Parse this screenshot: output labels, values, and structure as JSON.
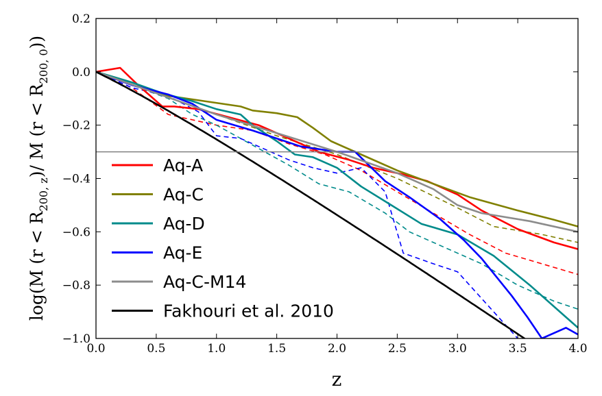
{
  "chart_data": {
    "type": "line",
    "xlabel": "z",
    "ylabel": {
      "prefix": "log(M (r < R",
      "sub1": "200, z",
      "middle": ")/ M (r < R",
      "sub2": "200, 0",
      "suffix": "))"
    },
    "xlim": [
      0.0,
      4.0
    ],
    "ylim": [
      -1.0,
      0.2
    ],
    "xticks": [
      "0.0",
      "0.5",
      "1.0",
      "1.5",
      "2.0",
      "2.5",
      "3.0",
      "3.5",
      "4.0"
    ],
    "yticks": [
      "0.2",
      "0.0",
      "−0.2",
      "−0.4",
      "−0.6",
      "−0.8",
      "−1.0"
    ],
    "grid": false,
    "legend_position": "left",
    "hline": {
      "y": -0.3,
      "color": "#808080"
    },
    "series": [
      {
        "name": "Aq-A",
        "color": "#ff0000",
        "style": "solid",
        "points": [
          [
            0,
            0
          ],
          [
            0.2,
            0.015
          ],
          [
            0.35,
            -0.05
          ],
          [
            0.55,
            -0.13
          ],
          [
            0.65,
            -0.13
          ],
          [
            0.85,
            -0.14
          ],
          [
            1.1,
            -0.17
          ],
          [
            1.35,
            -0.2
          ],
          [
            1.6,
            -0.25
          ],
          [
            1.85,
            -0.3
          ],
          [
            2.1,
            -0.33
          ],
          [
            2.3,
            -0.36
          ],
          [
            2.55,
            -0.385
          ],
          [
            2.75,
            -0.41
          ],
          [
            3.0,
            -0.46
          ],
          [
            3.2,
            -0.52
          ],
          [
            3.5,
            -0.59
          ],
          [
            3.8,
            -0.64
          ],
          [
            4.0,
            -0.665
          ]
        ]
      },
      {
        "name": "Aq-C",
        "color": "#808000",
        "style": "solid",
        "points": [
          [
            0,
            0
          ],
          [
            0.3,
            -0.04
          ],
          [
            0.6,
            -0.09
          ],
          [
            0.9,
            -0.11
          ],
          [
            1.2,
            -0.13
          ],
          [
            1.3,
            -0.145
          ],
          [
            1.5,
            -0.155
          ],
          [
            1.67,
            -0.17
          ],
          [
            1.8,
            -0.21
          ],
          [
            1.95,
            -0.26
          ],
          [
            2.2,
            -0.31
          ],
          [
            2.5,
            -0.37
          ],
          [
            2.8,
            -0.42
          ],
          [
            3.1,
            -0.47
          ],
          [
            3.5,
            -0.52
          ],
          [
            3.8,
            -0.555
          ],
          [
            4.0,
            -0.58
          ]
        ]
      },
      {
        "name": "Aq-D",
        "color": "#008b8b",
        "style": "solid",
        "points": [
          [
            0,
            0
          ],
          [
            0.3,
            -0.04
          ],
          [
            0.55,
            -0.08
          ],
          [
            0.8,
            -0.11
          ],
          [
            1.0,
            -0.14
          ],
          [
            1.2,
            -0.16
          ],
          [
            1.3,
            -0.2
          ],
          [
            1.5,
            -0.26
          ],
          [
            1.65,
            -0.31
          ],
          [
            1.8,
            -0.32
          ],
          [
            2.0,
            -0.36
          ],
          [
            2.2,
            -0.43
          ],
          [
            2.45,
            -0.5
          ],
          [
            2.7,
            -0.57
          ],
          [
            3.0,
            -0.61
          ],
          [
            3.3,
            -0.69
          ],
          [
            3.6,
            -0.8
          ],
          [
            3.9,
            -0.92
          ],
          [
            4.0,
            -0.96
          ]
        ]
      },
      {
        "name": "Aq-E",
        "color": "#0000ff",
        "style": "solid",
        "points": [
          [
            0,
            0
          ],
          [
            0.3,
            -0.05
          ],
          [
            0.6,
            -0.085
          ],
          [
            0.8,
            -0.12
          ],
          [
            1.0,
            -0.18
          ],
          [
            1.15,
            -0.2
          ],
          [
            1.3,
            -0.22
          ],
          [
            1.5,
            -0.25
          ],
          [
            1.7,
            -0.28
          ],
          [
            1.85,
            -0.29
          ],
          [
            2.0,
            -0.3
          ],
          [
            2.15,
            -0.3
          ],
          [
            2.4,
            -0.41
          ],
          [
            2.6,
            -0.47
          ],
          [
            2.85,
            -0.55
          ],
          [
            3.05,
            -0.63
          ],
          [
            3.2,
            -0.7
          ],
          [
            3.45,
            -0.84
          ],
          [
            3.58,
            -0.92
          ],
          [
            3.7,
            -1.0
          ],
          [
            3.9,
            -0.96
          ],
          [
            4.0,
            -0.985
          ]
        ]
      },
      {
        "name": "Aq-C-M14",
        "color": "#8c8c8c",
        "style": "solid",
        "points": [
          [
            0,
            0
          ],
          [
            0.5,
            -0.08
          ],
          [
            1.0,
            -0.16
          ],
          [
            1.5,
            -0.23
          ],
          [
            2.0,
            -0.3
          ],
          [
            2.5,
            -0.38
          ],
          [
            2.8,
            -0.44
          ],
          [
            3.0,
            -0.5
          ],
          [
            3.2,
            -0.53
          ],
          [
            3.6,
            -0.56
          ],
          [
            4.0,
            -0.6
          ]
        ]
      },
      {
        "name": "Fakhouri et al. 2010",
        "color": "#000000",
        "style": "solid",
        "fn": "fakhouri"
      },
      {
        "color": "#ff0000",
        "style": "dashed",
        "points": [
          [
            0,
            0
          ],
          [
            0.3,
            -0.06
          ],
          [
            0.6,
            -0.16
          ],
          [
            0.8,
            -0.18
          ],
          [
            1.0,
            -0.2
          ],
          [
            1.3,
            -0.22
          ],
          [
            1.6,
            -0.27
          ],
          [
            1.9,
            -0.31
          ],
          [
            2.2,
            -0.37
          ],
          [
            2.5,
            -0.45
          ],
          [
            2.8,
            -0.53
          ],
          [
            3.1,
            -0.61
          ],
          [
            3.4,
            -0.68
          ],
          [
            3.7,
            -0.72
          ],
          [
            4.0,
            -0.76
          ]
        ]
      },
      {
        "color": "#808000",
        "style": "dashed",
        "points": [
          [
            0,
            0
          ],
          [
            0.5,
            -0.08
          ],
          [
            1.0,
            -0.16
          ],
          [
            1.5,
            -0.24
          ],
          [
            2.0,
            -0.31
          ],
          [
            2.5,
            -0.4
          ],
          [
            3.0,
            -0.51
          ],
          [
            3.3,
            -0.58
          ],
          [
            3.7,
            -0.61
          ],
          [
            4.0,
            -0.64
          ]
        ]
      },
      {
        "color": "#008b8b",
        "style": "dashed",
        "points": [
          [
            0,
            0
          ],
          [
            0.3,
            -0.05
          ],
          [
            0.6,
            -0.1
          ],
          [
            0.8,
            -0.16
          ],
          [
            1.0,
            -0.2
          ],
          [
            1.2,
            -0.25
          ],
          [
            1.4,
            -0.3
          ],
          [
            1.6,
            -0.35
          ],
          [
            1.85,
            -0.42
          ],
          [
            2.1,
            -0.45
          ],
          [
            2.4,
            -0.53
          ],
          [
            2.6,
            -0.6
          ],
          [
            2.9,
            -0.66
          ],
          [
            3.2,
            -0.72
          ],
          [
            3.5,
            -0.8
          ],
          [
            3.8,
            -0.86
          ],
          [
            4.0,
            -0.89
          ]
        ]
      },
      {
        "color": "#0000ff",
        "style": "dashed",
        "points": [
          [
            0,
            0
          ],
          [
            0.3,
            -0.06
          ],
          [
            0.6,
            -0.09
          ],
          [
            0.85,
            -0.15
          ],
          [
            1.0,
            -0.24
          ],
          [
            1.2,
            -0.25
          ],
          [
            1.4,
            -0.29
          ],
          [
            1.6,
            -0.33
          ],
          [
            1.8,
            -0.36
          ],
          [
            2.0,
            -0.38
          ],
          [
            2.2,
            -0.36
          ],
          [
            2.4,
            -0.45
          ],
          [
            2.55,
            -0.68
          ],
          [
            2.8,
            -0.72
          ],
          [
            3.0,
            -0.75
          ],
          [
            3.2,
            -0.85
          ],
          [
            3.4,
            -0.95
          ],
          [
            3.5,
            -1.0
          ]
        ]
      }
    ]
  }
}
